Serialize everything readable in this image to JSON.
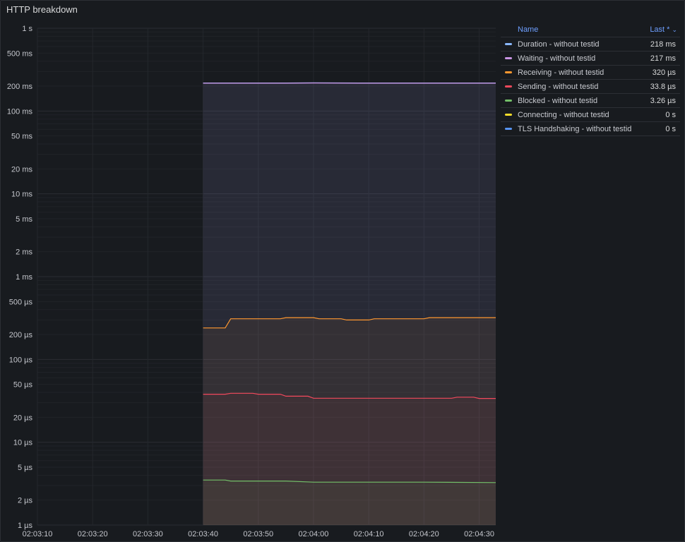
{
  "panel": {
    "title": "HTTP breakdown"
  },
  "legend": {
    "name_header": "Name",
    "last_header": "Last *",
    "sort_icon": "chevron-down-icon",
    "rows": [
      {
        "name": "Duration - without testid",
        "last": "218 ms",
        "color": "#8ab8ff"
      },
      {
        "name": "Waiting - without testid",
        "last": "217 ms",
        "color": "#ca95e5"
      },
      {
        "name": "Receiving - without testid",
        "last": "320 µs",
        "color": "#ff9830"
      },
      {
        "name": "Sending - without testid",
        "last": "33.8 µs",
        "color": "#f2495c"
      },
      {
        "name": "Blocked - without testid",
        "last": "3.26 µs",
        "color": "#73bf69"
      },
      {
        "name": "Connecting - without testid",
        "last": "0 s",
        "color": "#fade2a"
      },
      {
        "name": "TLS Handshaking - without testid",
        "last": "0 s",
        "color": "#5794f2"
      }
    ]
  },
  "chart_data": {
    "type": "area",
    "title": "HTTP breakdown",
    "y_scale": "log",
    "y_unit": "seconds",
    "ylim": [
      1e-06,
      1
    ],
    "y_ticks": [
      {
        "v": 1,
        "label": "1 s"
      },
      {
        "v": 0.5,
        "label": "500 ms"
      },
      {
        "v": 0.2,
        "label": "200 ms"
      },
      {
        "v": 0.1,
        "label": "100 ms"
      },
      {
        "v": 0.05,
        "label": "50 ms"
      },
      {
        "v": 0.02,
        "label": "20 ms"
      },
      {
        "v": 0.01,
        "label": "10 ms"
      },
      {
        "v": 0.005,
        "label": "5 ms"
      },
      {
        "v": 0.002,
        "label": "2 ms"
      },
      {
        "v": 0.001,
        "label": "1 ms"
      },
      {
        "v": 0.0005,
        "label": "500 µs"
      },
      {
        "v": 0.0002,
        "label": "200 µs"
      },
      {
        "v": 0.0001,
        "label": "100 µs"
      },
      {
        "v": 5e-05,
        "label": "50 µs"
      },
      {
        "v": 2e-05,
        "label": "20 µs"
      },
      {
        "v": 1e-05,
        "label": "10 µs"
      },
      {
        "v": 5e-06,
        "label": "5 µs"
      },
      {
        "v": 2e-06,
        "label": "2 µs"
      },
      {
        "v": 1e-06,
        "label": "1 µs"
      }
    ],
    "x_range": [
      "02:03:10",
      "02:04:33"
    ],
    "x_ticks": [
      "02:03:10",
      "02:03:20",
      "02:03:30",
      "02:03:40",
      "02:03:50",
      "02:04:00",
      "02:04:10",
      "02:04:20",
      "02:04:30"
    ],
    "grid": true,
    "legend_position": "right",
    "series": [
      {
        "name": "Duration - without testid",
        "color": "#8ab8ff",
        "points": [
          [
            "02:03:40",
            0.218
          ],
          [
            "02:03:55",
            0.218
          ],
          [
            "02:04:00",
            0.219
          ],
          [
            "02:04:10",
            0.218
          ],
          [
            "02:04:20",
            0.218
          ],
          [
            "02:04:33",
            0.218
          ]
        ]
      },
      {
        "name": "Waiting - without testid",
        "color": "#ca95e5",
        "points": [
          [
            "02:03:40",
            0.217
          ],
          [
            "02:03:55",
            0.217
          ],
          [
            "02:04:00",
            0.218
          ],
          [
            "02:04:10",
            0.217
          ],
          [
            "02:04:20",
            0.217
          ],
          [
            "02:04:33",
            0.217
          ]
        ]
      },
      {
        "name": "Receiving - without testid",
        "color": "#ff9830",
        "points": [
          [
            "02:03:40",
            0.00024
          ],
          [
            "02:03:44",
            0.00024
          ],
          [
            "02:03:45",
            0.00031
          ],
          [
            "02:03:54",
            0.00031
          ],
          [
            "02:03:55",
            0.00032
          ],
          [
            "02:04:00",
            0.00032
          ],
          [
            "02:04:01",
            0.00031
          ],
          [
            "02:04:05",
            0.00031
          ],
          [
            "02:04:06",
            0.0003
          ],
          [
            "02:04:10",
            0.0003
          ],
          [
            "02:04:11",
            0.00031
          ],
          [
            "02:04:15",
            0.00031
          ],
          [
            "02:04:16",
            0.00031
          ],
          [
            "02:04:20",
            0.00031
          ],
          [
            "02:04:21",
            0.00032
          ],
          [
            "02:04:33",
            0.00032
          ]
        ]
      },
      {
        "name": "Sending - without testid",
        "color": "#f2495c",
        "points": [
          [
            "02:03:40",
            3.8e-05
          ],
          [
            "02:03:44",
            3.8e-05
          ],
          [
            "02:03:45",
            3.9e-05
          ],
          [
            "02:03:49",
            3.9e-05
          ],
          [
            "02:03:50",
            3.8e-05
          ],
          [
            "02:03:54",
            3.8e-05
          ],
          [
            "02:03:55",
            3.6e-05
          ],
          [
            "02:03:59",
            3.6e-05
          ],
          [
            "02:04:00",
            3.4e-05
          ],
          [
            "02:04:25",
            3.4e-05
          ],
          [
            "02:04:26",
            3.5e-05
          ],
          [
            "02:04:29",
            3.5e-05
          ],
          [
            "02:04:30",
            3.38e-05
          ],
          [
            "02:04:33",
            3.38e-05
          ]
        ]
      },
      {
        "name": "Blocked - without testid",
        "color": "#73bf69",
        "points": [
          [
            "02:03:40",
            3.5e-06
          ],
          [
            "02:03:44",
            3.5e-06
          ],
          [
            "02:03:45",
            3.4e-06
          ],
          [
            "02:03:55",
            3.4e-06
          ],
          [
            "02:04:00",
            3.3e-06
          ],
          [
            "02:04:10",
            3.3e-06
          ],
          [
            "02:04:20",
            3.3e-06
          ],
          [
            "02:04:33",
            3.26e-06
          ]
        ]
      },
      {
        "name": "Connecting - without testid",
        "color": "#fade2a",
        "points": []
      },
      {
        "name": "TLS Handshaking - without testid",
        "color": "#5794f2",
        "points": []
      }
    ]
  }
}
